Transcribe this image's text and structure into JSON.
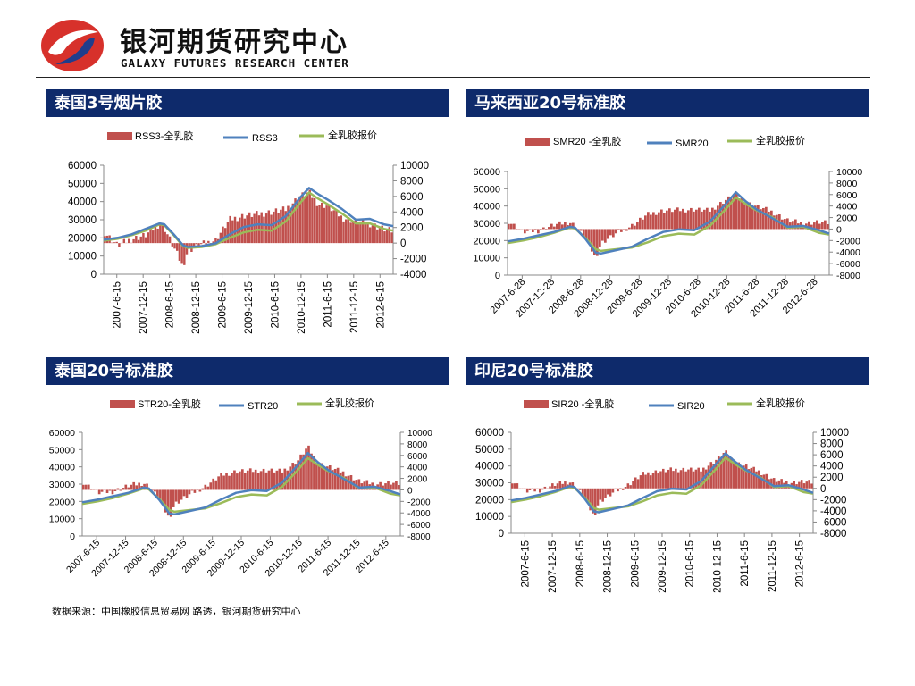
{
  "header": {
    "org_name": "银河期货研究中心",
    "org_name_en": "GALAXY FUTURES RESEARCH CENTER"
  },
  "colors": {
    "panel_bar": "#0e2a6b",
    "spread_bar": "#c0504d",
    "grade_line": "#4f81bd",
    "wholelatex_line": "#9bbb59",
    "logo_red": "#d7312b",
    "logo_blue": "#1f3d8c"
  },
  "panels": [
    {
      "title": "泰国3号烟片胶",
      "legend": [
        "RSS3-全乳胶",
        "RSS3",
        "全乳胶报价"
      ]
    },
    {
      "title": "马来西亚20号标准胶",
      "legend": [
        "SMR20 -全乳胶",
        "SMR20",
        "全乳胶报价"
      ]
    },
    {
      "title": "泰国20号标准胶",
      "legend": [
        "STR20-全乳胶",
        "STR20",
        "全乳胶报价"
      ]
    },
    {
      "title": "印尼20号标准胶",
      "legend": [
        "SIR20 -全乳胶",
        "SIR20",
        "全乳胶报价"
      ]
    }
  ],
  "footer": {
    "source": "数据来源：中国橡胶信息贸易网 路透，银河期货研究中心"
  },
  "chart_data": [
    {
      "type": "line",
      "title": "泰国3号烟片胶",
      "x_ticks": [
        "2007-6-15",
        "2007-12-15",
        "2008-6-15",
        "2008-12-15",
        "2009-6-15",
        "2009-12-15",
        "2010-6-15",
        "2010-12-15",
        "2011-6-15",
        "2011-12-15",
        "2012-6-15"
      ],
      "x_tick_rotation": "vertical",
      "left_axis": {
        "ylim": [
          0,
          60000
        ],
        "ticks": [
          0,
          10000,
          20000,
          30000,
          40000,
          50000,
          60000
        ]
      },
      "right_axis": {
        "ylim": [
          -4000,
          10000
        ],
        "ticks": [
          -4000,
          -2000,
          0,
          2000,
          4000,
          6000,
          8000,
          10000
        ]
      },
      "x": [
        "2007-06",
        "2007-09",
        "2007-12",
        "2008-03",
        "2008-06",
        "2008-07",
        "2008-09",
        "2008-11",
        "2008-12",
        "2009-03",
        "2009-06",
        "2009-09",
        "2009-12",
        "2010-03",
        "2010-06",
        "2010-09",
        "2010-12",
        "2011-02",
        "2011-04",
        "2011-06",
        "2011-09",
        "2011-12",
        "2012-03",
        "2012-06",
        "2012-08"
      ],
      "series": [
        {
          "name": "RSS3-全乳胶",
          "axis": "right",
          "kind": "bar",
          "values": [
            1500,
            -300,
            500,
            1000,
            2500,
            2000,
            -500,
            -3000,
            -1000,
            -200,
            400,
            3000,
            3500,
            3700,
            4000,
            4300,
            6000,
            6500,
            5000,
            4800,
            3300,
            2800,
            2500,
            1800,
            1500
          ]
        },
        {
          "name": "RSS3",
          "axis": "left",
          "kind": "line",
          "values": [
            19000,
            20000,
            22000,
            25000,
            28000,
            27500,
            22000,
            16000,
            15000,
            15500,
            17000,
            22000,
            26000,
            27500,
            27000,
            32000,
            42000,
            47500,
            44000,
            41000,
            36000,
            30000,
            30500,
            27500,
            26500
          ]
        },
        {
          "name": "全乳胶报价",
          "axis": "left",
          "kind": "line",
          "values": [
            18500,
            19500,
            21500,
            24000,
            27500,
            27000,
            21500,
            15500,
            14500,
            15000,
            16500,
            20000,
            23000,
            24500,
            24000,
            29000,
            39000,
            45000,
            41500,
            38500,
            33500,
            28000,
            28000,
            25000,
            24000
          ]
        }
      ]
    },
    {
      "type": "line",
      "title": "马来西亚20号标准胶",
      "x_ticks": [
        "2007-6-28",
        "2007-12-28",
        "2008-6-28",
        "2008-12-28",
        "2009-6-28",
        "2009-12-28",
        "2010-6-28",
        "2010-12-28",
        "2011-6-28",
        "2011-12-28",
        "2012-6-28"
      ],
      "x_tick_rotation": "diagonal",
      "left_axis": {
        "ylim": [
          0,
          60000
        ],
        "ticks": [
          0,
          10000,
          20000,
          30000,
          40000,
          50000,
          60000
        ]
      },
      "right_axis": {
        "ylim": [
          -8000,
          10000
        ],
        "ticks": [
          -8000,
          -6000,
          -4000,
          -2000,
          0,
          2000,
          4000,
          6000,
          8000,
          10000
        ]
      },
      "x": [
        "2007-06",
        "2007-09",
        "2007-12",
        "2008-03",
        "2008-06",
        "2008-07",
        "2008-09",
        "2008-11",
        "2008-12",
        "2009-03",
        "2009-06",
        "2009-09",
        "2009-12",
        "2010-03",
        "2010-06",
        "2010-09",
        "2010-12",
        "2011-02",
        "2011-04",
        "2011-06",
        "2011-09",
        "2011-12",
        "2012-03",
        "2012-06",
        "2012-08"
      ],
      "series": [
        {
          "name": "SMR20 -全乳胶",
          "axis": "right",
          "kind": "bar",
          "values": [
            1500,
            -500,
            -300,
            700,
            1200,
            600,
            -1500,
            -5000,
            -2500,
            -800,
            600,
            2500,
            3200,
            3300,
            3400,
            3200,
            5000,
            6000,
            4600,
            4000,
            3000,
            1500,
            1000,
            1200,
            1000
          ]
        },
        {
          "name": "SMR20",
          "axis": "left",
          "kind": "line",
          "values": [
            19500,
            21000,
            23000,
            25000,
            28000,
            27500,
            21000,
            13000,
            12500,
            14500,
            16500,
            21000,
            25000,
            26500,
            26000,
            31000,
            41000,
            48000,
            42500,
            38000,
            33000,
            28000,
            28500,
            26000,
            24000
          ]
        },
        {
          "name": "全乳胶报价",
          "axis": "left",
          "kind": "line",
          "values": [
            18500,
            20000,
            22000,
            24500,
            27500,
            27000,
            21500,
            15000,
            14000,
            15000,
            16000,
            19000,
            22500,
            24000,
            23500,
            28500,
            38000,
            45000,
            41000,
            37500,
            33500,
            27500,
            28000,
            24500,
            23500
          ]
        }
      ]
    },
    {
      "type": "line",
      "title": "泰国20号标准胶",
      "x_ticks": [
        "2007-6-15",
        "2007-12-15",
        "2008-6-15",
        "2008-12-15",
        "2009-6-15",
        "2009-12-15",
        "2010-6-15",
        "2010-12-15",
        "2011-6-15",
        "2011-12-15",
        "2012-6-15"
      ],
      "x_tick_rotation": "diagonal",
      "left_axis": {
        "ylim": [
          0,
          60000
        ],
        "ticks": [
          0,
          10000,
          20000,
          30000,
          40000,
          50000,
          60000
        ]
      },
      "right_axis": {
        "ylim": [
          -8000,
          10000
        ],
        "ticks": [
          -8000,
          -6000,
          -4000,
          -2000,
          0,
          2000,
          4000,
          6000,
          8000,
          10000
        ]
      },
      "x": [
        "2007-06",
        "2007-09",
        "2007-12",
        "2008-03",
        "2008-06",
        "2008-07",
        "2008-09",
        "2008-11",
        "2008-12",
        "2009-03",
        "2009-06",
        "2009-09",
        "2009-12",
        "2010-03",
        "2010-06",
        "2010-09",
        "2010-12",
        "2011-02",
        "2011-04",
        "2011-06",
        "2011-09",
        "2011-12",
        "2012-03",
        "2012-06",
        "2012-08"
      ],
      "series": [
        {
          "name": "STR20-全乳胶",
          "axis": "right",
          "kind": "bar",
          "values": [
            1500,
            -500,
            -300,
            700,
            1200,
            600,
            -1500,
            -5000,
            -2500,
            -800,
            600,
            2500,
            3200,
            3300,
            3400,
            3200,
            5000,
            7500,
            4600,
            4000,
            3000,
            1500,
            1000,
            1200,
            1000
          ]
        },
        {
          "name": "STR20",
          "axis": "left",
          "kind": "line",
          "values": [
            19500,
            21000,
            23000,
            25000,
            28000,
            27500,
            21000,
            13000,
            12500,
            14500,
            16500,
            21000,
            25000,
            26500,
            26000,
            31000,
            41000,
            48000,
            42500,
            38000,
            33000,
            28000,
            28500,
            26000,
            24000
          ]
        },
        {
          "name": "全乳胶报价",
          "axis": "left",
          "kind": "line",
          "values": [
            18500,
            20000,
            22000,
            24500,
            27500,
            27000,
            21500,
            15000,
            14000,
            15000,
            16000,
            19000,
            22500,
            24000,
            23500,
            28500,
            38000,
            45000,
            41000,
            37500,
            33500,
            27500,
            28000,
            24500,
            23500
          ]
        }
      ]
    },
    {
      "type": "line",
      "title": "印尼20号标准胶",
      "x_ticks": [
        "2007-6-15",
        "2007-12-15",
        "2008-6-15",
        "2008-12-15",
        "2009-6-15",
        "2009-12-15",
        "2010-6-15",
        "2010-12-15",
        "2011-6-15",
        "2011-12-15",
        "2012-6-15"
      ],
      "x_tick_rotation": "vertical",
      "left_axis": {
        "ylim": [
          0,
          60000
        ],
        "ticks": [
          0,
          10000,
          20000,
          30000,
          40000,
          50000,
          60000
        ]
      },
      "right_axis": {
        "ylim": [
          -8000,
          10000
        ],
        "ticks": [
          -8000,
          -6000,
          -4000,
          -2000,
          0,
          2000,
          4000,
          6000,
          8000,
          10000
        ]
      },
      "x": [
        "2007-06",
        "2007-09",
        "2007-12",
        "2008-03",
        "2008-06",
        "2008-07",
        "2008-09",
        "2008-11",
        "2008-12",
        "2009-03",
        "2009-06",
        "2009-09",
        "2009-12",
        "2010-03",
        "2010-06",
        "2010-09",
        "2010-12",
        "2011-02",
        "2011-04",
        "2011-06",
        "2011-09",
        "2011-12",
        "2012-03",
        "2012-06",
        "2012-08"
      ],
      "series": [
        {
          "name": "SIR20 -全乳胶",
          "axis": "right",
          "kind": "bar",
          "values": [
            1500,
            -500,
            -300,
            700,
            1200,
            600,
            -1500,
            -5000,
            -2500,
            -800,
            600,
            2500,
            3000,
            3300,
            3400,
            3200,
            5000,
            6500,
            4600,
            4000,
            3000,
            1500,
            1000,
            1200,
            1000
          ]
        },
        {
          "name": "SIR20",
          "axis": "left",
          "kind": "line",
          "values": [
            19500,
            21000,
            23000,
            25000,
            28000,
            27500,
            21000,
            13000,
            12500,
            14500,
            16500,
            21000,
            25000,
            26500,
            26000,
            31000,
            41000,
            47500,
            42500,
            38000,
            33000,
            28000,
            28500,
            26000,
            24000
          ]
        },
        {
          "name": "全乳胶报价",
          "axis": "left",
          "kind": "line",
          "values": [
            18500,
            20000,
            22000,
            24500,
            27500,
            27000,
            21500,
            15000,
            14000,
            15000,
            16000,
            19000,
            22500,
            24000,
            23500,
            28500,
            38000,
            45000,
            41000,
            37500,
            33500,
            27500,
            28000,
            24500,
            23500
          ]
        }
      ]
    }
  ]
}
